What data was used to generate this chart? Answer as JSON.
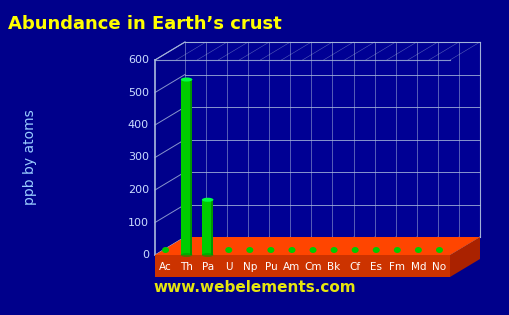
{
  "title": "Abundance in Earth’s crust",
  "ylabel": "ppb by atoms",
  "elements": [
    "Ac",
    "Th",
    "Pa",
    "U",
    "Np",
    "Pu",
    "Am",
    "Cm",
    "Bk",
    "Cf",
    "Es",
    "Fm",
    "Md",
    "No"
  ],
  "values": [
    0.5,
    540,
    170,
    0.5,
    0.5,
    0.5,
    0.5,
    0.5,
    0.5,
    0.5,
    0.5,
    0.5,
    0.5,
    0.5
  ],
  "ylim": [
    0,
    600
  ],
  "yticks": [
    0,
    100,
    200,
    300,
    400,
    500,
    600
  ],
  "background_color": "#00008B",
  "title_color": "#FFFF00",
  "bar_color": "#00CC00",
  "platform_top_color": "#FF4500",
  "platform_front_color": "#CC3300",
  "axis_label_color": "#99CCFF",
  "tick_label_color": "#CCDDFF",
  "grid_color": "#AABBDD",
  "watermark": "www.webelements.com",
  "watermark_color": "#FFFF00",
  "title_fontsize": 13,
  "ylabel_fontsize": 10,
  "tick_fontsize": 8,
  "elem_fontsize": 7.5
}
